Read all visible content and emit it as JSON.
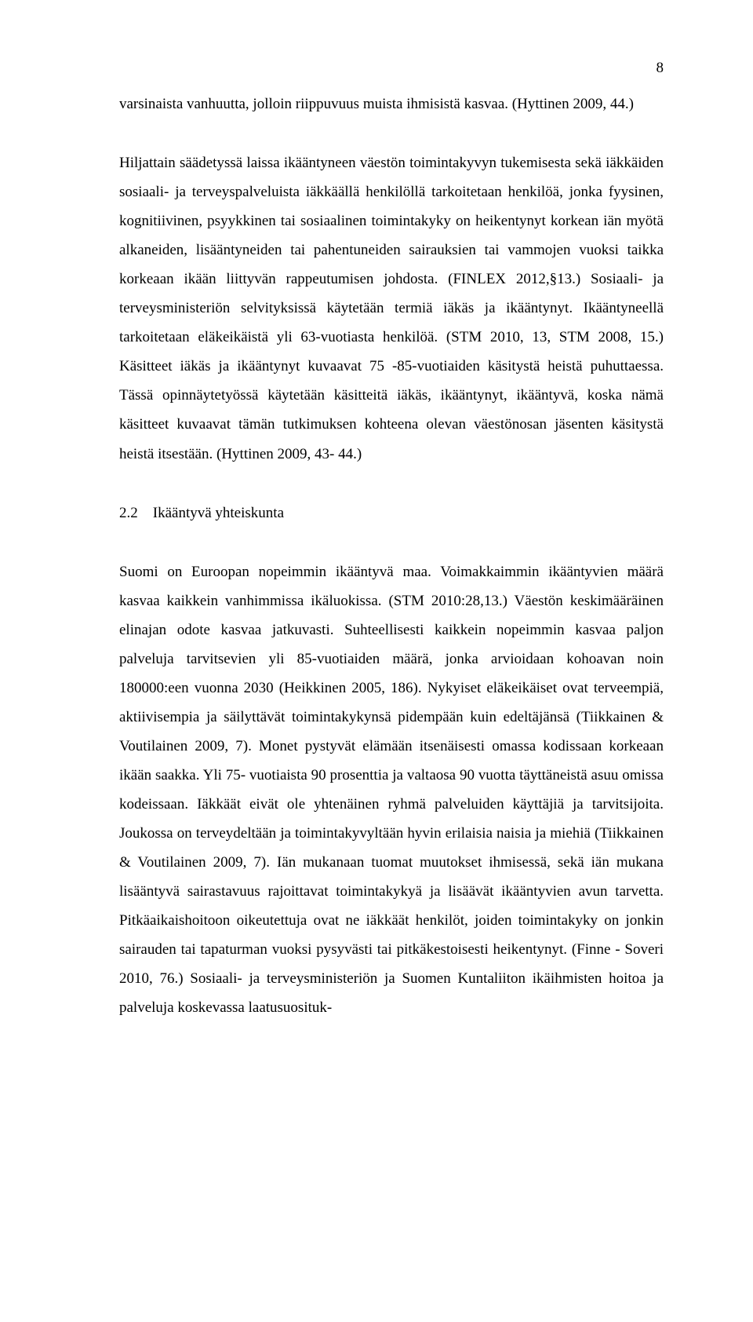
{
  "page_number": "8",
  "para1": "varsinaista vanhuutta, jolloin riippuvuus muista ihmisistä kasvaa. (Hyttinen 2009, 44.)",
  "para2": "Hiljattain säädetyssä laissa ikääntyneen väestön toimintakyvyn tukemisesta sekä iäkkäiden sosiaali- ja terveyspalveluista iäkkäällä henkilöllä tarkoitetaan henkilöä, jonka fyysinen, kognitiivinen, psyykkinen tai sosiaalinen toimintakyky on heikentynyt korkean iän myötä alkaneiden, lisääntyneiden tai pahentuneiden sairauksien tai vammojen vuoksi taikka korkeaan ikään liittyvän rappeutumisen johdosta. (FINLEX 2012,§13.) Sosiaali- ja terveysministeriön selvityksissä käytetään termiä iäkäs ja ikääntynyt. Ikääntyneellä tarkoitetaan eläkeikäistä yli 63-vuotiasta henkilöä. (STM 2010, 13, STM 2008, 15.) Käsitteet iäkäs ja ikääntynyt kuvaavat 75 -85-vuotiaiden käsitystä heistä puhuttaessa. Tässä opinnäytetyössä käytetään käsitteitä iäkäs, ikääntynyt, ikääntyvä, koska nämä käsitteet kuvaavat tämän tutkimuksen kohteena olevan väestönosan jäsenten käsitystä heistä itsestään. (Hyttinen 2009, 43- 44.)",
  "heading": "2.2 Ikääntyvä yhteiskunta",
  "para3": "Suomi on Euroopan nopeimmin ikääntyvä maa. Voimakkaimmin ikääntyvien määrä kasvaa kaikkein vanhimmissa ikäluokissa. (STM 2010:28,13.) Väestön keskimääräinen elinajan odote kasvaa jatkuvasti. Suhteellisesti kaikkein nopeimmin kasvaa paljon palveluja tarvitsevien yli 85-vuotiaiden määrä, jonka arvioidaan kohoavan noin 180000:een vuonna 2030 (Heikkinen 2005, 186). Nykyiset eläkeikäiset ovat terveempiä, aktiivisempia ja säilyttävät toimintakykynsä pidempään kuin edeltäjänsä (Tiikkainen & Voutilainen 2009, 7). Monet pystyvät elämään itsenäisesti omassa kodissaan korkeaan ikään saakka. Yli 75- vuotiaista 90 prosenttia ja valtaosa 90 vuotta täyttäneistä asuu omissa kodeissaan. Iäkkäät eivät ole yhtenäinen ryhmä palveluiden käyttäjiä ja tarvitsijoita. Joukossa on terveydeltään ja toimintakyvyltään hyvin erilaisia naisia ja miehiä (Tiikkainen & Voutilainen 2009, 7). Iän mukanaan tuomat muutokset ihmisessä, sekä iän mukana lisääntyvä sairastavuus rajoittavat toimintakykyä ja lisäävät ikääntyvien avun tarvetta. Pitkäaikaishoitoon oikeutettuja ovat ne iäkkäät henkilöt, joiden toimintakyky on jonkin sairauden tai tapaturman vuoksi pysyvästi tai pitkäkestoisesti heikentynyt. (Finne - Soveri 2010, 76.) Sosiaali- ja terveysministeriön ja Suomen Kuntaliiton ikäihmisten hoitoa ja palveluja koskevassa laatusuosituk-"
}
